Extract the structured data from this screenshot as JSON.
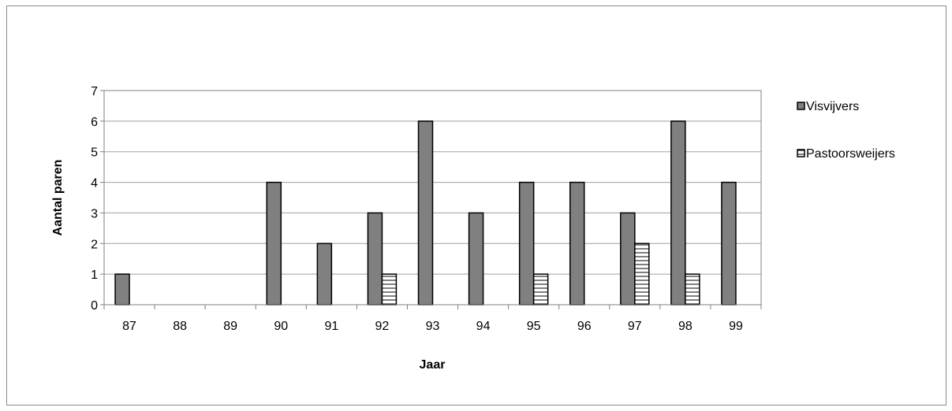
{
  "colors": {
    "visvijvers": "#808080",
    "pastoorsweijers": "#ffffff",
    "gridline": "#a0a0a0",
    "axis": "#808080",
    "bar_stroke": "#000000"
  },
  "chart_data": {
    "type": "bar",
    "title": "",
    "xlabel": "Jaar",
    "ylabel": "Aantal paren",
    "categories": [
      "87",
      "88",
      "89",
      "90",
      "91",
      "92",
      "93",
      "94",
      "95",
      "96",
      "97",
      "98",
      "99"
    ],
    "ylim": [
      0,
      7
    ],
    "yticks": [
      0,
      1,
      2,
      3,
      4,
      5,
      6,
      7
    ],
    "grid": true,
    "legend_position": "right",
    "series": [
      {
        "name": "Visvijvers",
        "values": [
          1,
          0,
          0,
          4,
          2,
          3,
          6,
          3,
          4,
          4,
          3,
          6,
          4
        ],
        "fill": "solid-gray"
      },
      {
        "name": "Pastoorsweijers",
        "values": [
          0,
          0,
          0,
          0,
          0,
          1,
          0,
          0,
          1,
          0,
          2,
          1,
          0
        ],
        "fill": "horizontal-hatch"
      }
    ]
  }
}
